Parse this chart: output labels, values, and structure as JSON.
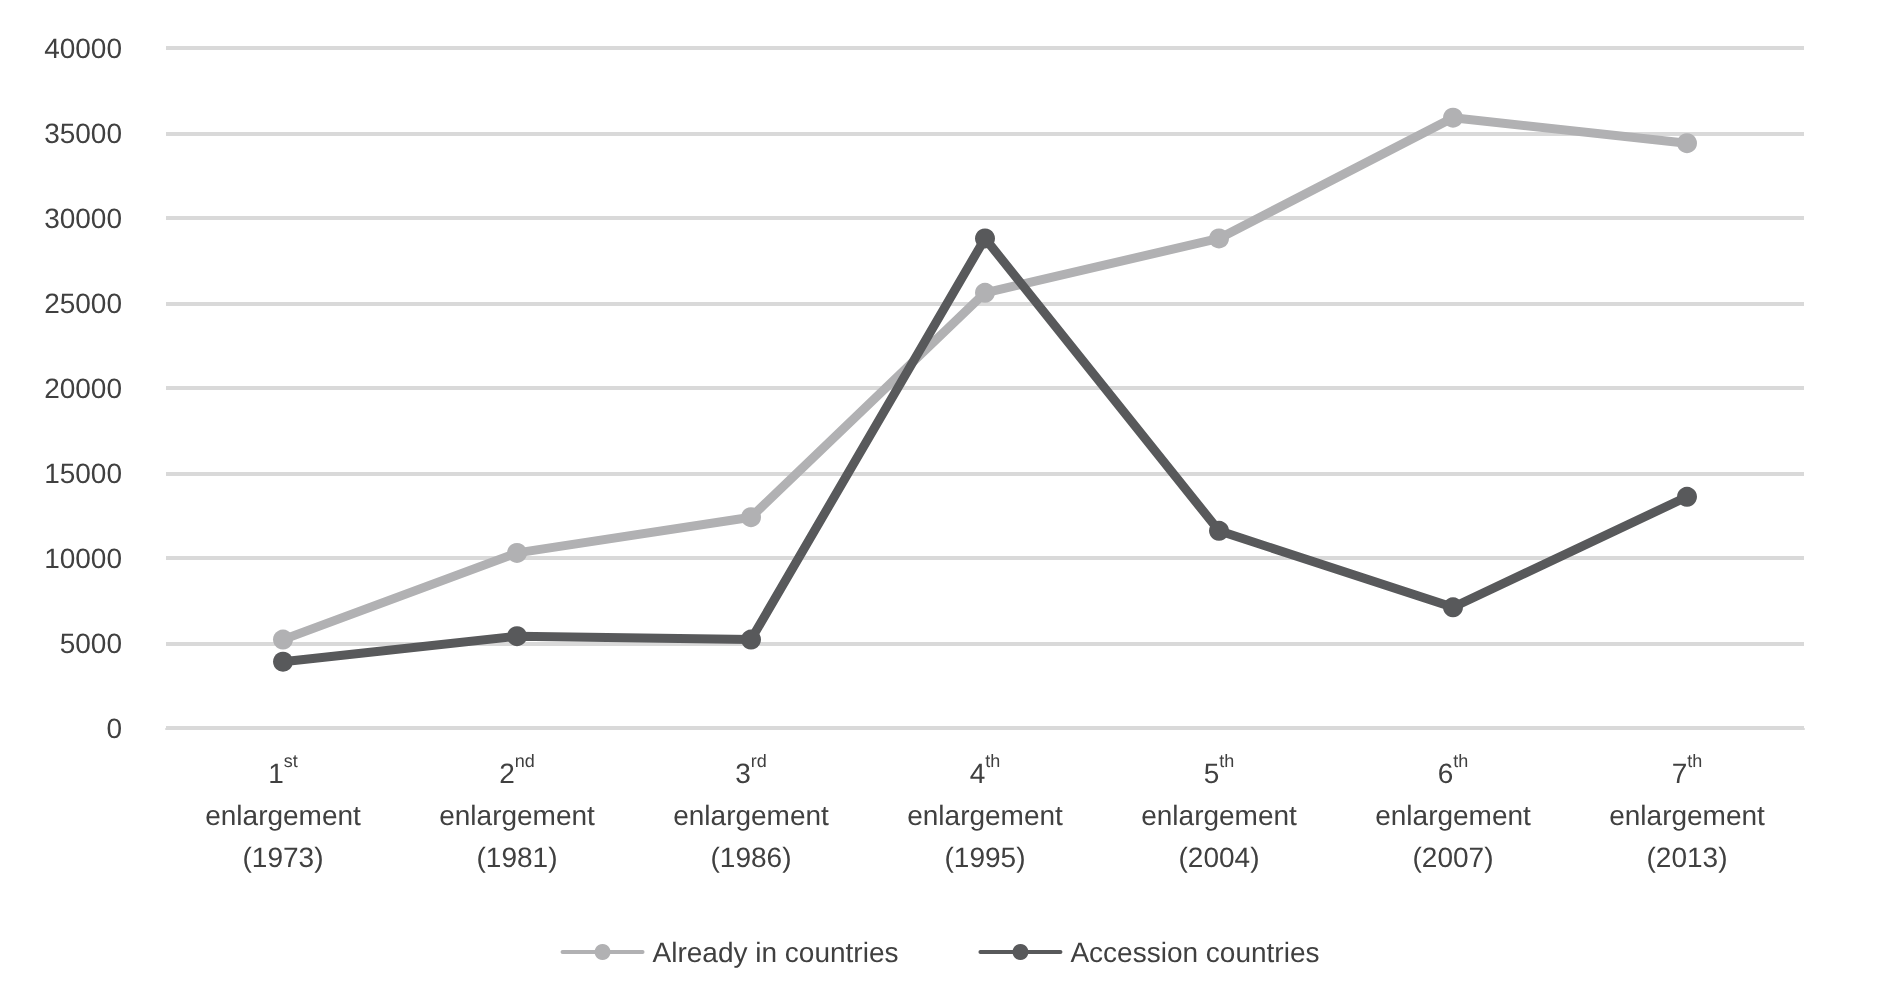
{
  "chart_data": {
    "type": "line",
    "categories": [
      "1$^{st}$\nenlargement\n(1973)",
      "2$^{nd}$\nenlargement\n(1981)",
      "3$^{rd}$\nenlargement\n(1986)",
      "4$^{th}$\nenlargement\n(1995)",
      "5$^{th}$\nenlargement\n(2004)",
      "6$^{th}$\nenlargement\n(2007)",
      "7$^{th}$\nenlargement\n(2013)"
    ],
    "series": [
      {
        "name": "Already in countries",
        "color": "#b1b1b3",
        "values": [
          5200,
          10300,
          12400,
          25600,
          28800,
          35900,
          34400
        ]
      },
      {
        "name": "Accession countries",
        "color": "#58595b",
        "values": [
          3900,
          5400,
          5200,
          28800,
          11600,
          7100,
          13600
        ]
      }
    ],
    "ylim": [
      0,
      40000
    ],
    "yticks": [
      0,
      5000,
      10000,
      15000,
      20000,
      25000,
      30000,
      35000,
      40000
    ],
    "grid": "y",
    "legend": "bottom",
    "marker": "circle",
    "line_style": "solid"
  }
}
